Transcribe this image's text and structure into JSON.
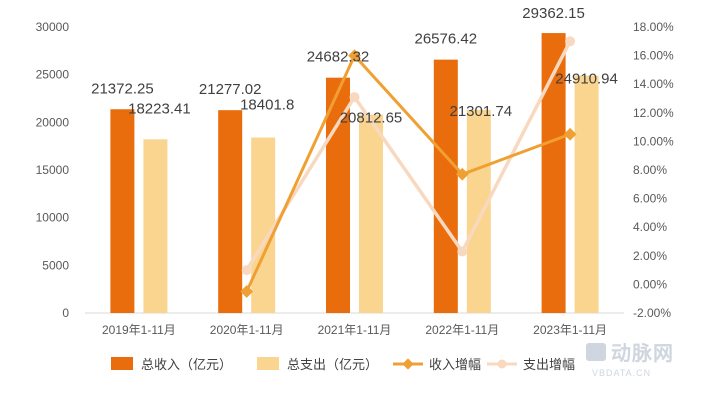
{
  "chart_data": {
    "type": "bar",
    "categories": [
      "2019年1-11月",
      "2020年1-11月",
      "2021年1-11月",
      "2022年1-11月",
      "2023年1-11月"
    ],
    "series": [
      {
        "name": "总收入（亿元）",
        "kind": "bar",
        "axis": "left",
        "color": "#E96D0C",
        "values": [
          21372.25,
          21277.02,
          24682.32,
          26576.42,
          29362.15
        ],
        "labels": [
          "21372.25",
          "21277.02",
          "24682.32",
          "26576.42",
          "29362.15"
        ]
      },
      {
        "name": "总支出（亿元）",
        "kind": "bar",
        "axis": "left",
        "color": "#FAD58F",
        "values": [
          18223.41,
          18401.8,
          20812.65,
          21301.74,
          24910.94
        ],
        "labels": [
          "18223.41",
          "18401.8",
          "20812.65",
          "21301.74",
          "24910.94"
        ]
      },
      {
        "name": "收入增幅",
        "kind": "line",
        "axis": "right",
        "color": "#F0A033",
        "values": [
          null,
          -0.5,
          16.0,
          7.7,
          10.5
        ]
      },
      {
        "name": "支出增幅",
        "kind": "line",
        "axis": "right",
        "color": "#F8D9C0",
        "values": [
          null,
          1.0,
          13.1,
          2.3,
          17.0
        ]
      }
    ],
    "y_left": {
      "min": 0,
      "max": 30000,
      "step": 5000,
      "ticks": [
        "0",
        "5000",
        "10000",
        "15000",
        "20000",
        "25000",
        "30000"
      ]
    },
    "y_right": {
      "min": -2,
      "max": 18,
      "step": 2,
      "ticks": [
        "-2.00%",
        "0.00%",
        "2.00%",
        "4.00%",
        "6.00%",
        "8.00%",
        "10.00%",
        "12.00%",
        "14.00%",
        "16.00%",
        "18.00%"
      ]
    },
    "grid": false,
    "legend_position": "bottom"
  },
  "watermark": {
    "brand": "动脉网",
    "site": "VBDATA.CN"
  }
}
